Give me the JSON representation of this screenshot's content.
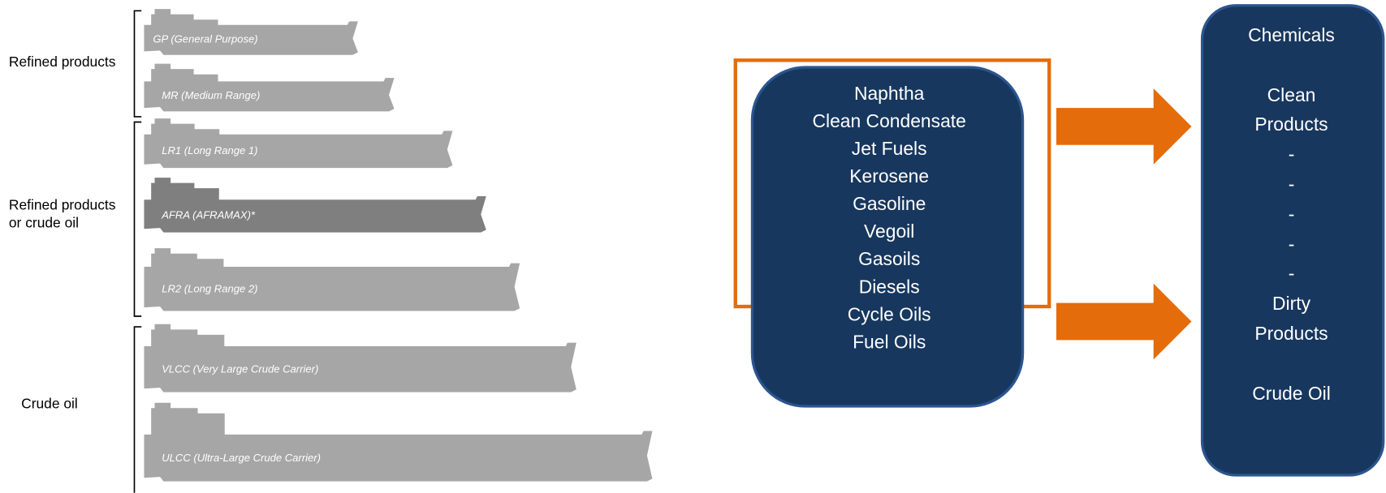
{
  "groups": [
    {
      "label_lines": [
        "Refined products"
      ]
    },
    {
      "label_lines": [
        "Refined products",
        "or crude oil"
      ]
    },
    {
      "label_lines": [
        "Crude oil"
      ]
    }
  ],
  "ships": [
    "GP (General Purpose)",
    "MR (Medium Range)",
    "LR1 (Long Range 1)",
    "AFRA (AFRAMAX)*",
    "LR2 (Long Range 2)",
    "VLCC (Very Large Crude Carrier)",
    "ULCC (Ultra-Large Crude Carrier)"
  ],
  "products": [
    "Naphtha",
    "Clean Condensate",
    "Jet Fuels",
    "Kerosene",
    "Gasoline",
    "Vegoil",
    "Gasoils",
    "Diesels",
    "Cycle Oils",
    "Fuel Oils"
  ],
  "categories": [
    "Chemicals",
    "Clean",
    "Products",
    "-",
    "-",
    "-",
    "-",
    "-",
    "Dirty",
    "Products",
    "Crude Oil"
  ]
}
